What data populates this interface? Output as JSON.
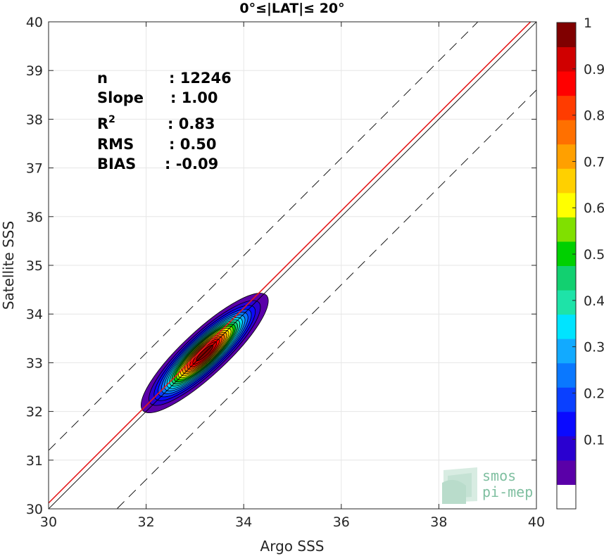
{
  "chart_data": {
    "type": "heatmap",
    "subtype": "density-contour-scatter",
    "title": "0°≤|LAT|≤ 20°",
    "xlabel": "Argo SSS",
    "ylabel": "Satellite SSS",
    "xlim": [
      30,
      40
    ],
    "ylim": [
      30,
      40
    ],
    "xticks": [
      "30",
      "32",
      "34",
      "36",
      "38",
      "40"
    ],
    "yticks": [
      "30",
      "31",
      "32",
      "33",
      "34",
      "35",
      "36",
      "37",
      "38",
      "39",
      "40"
    ],
    "grid": true,
    "stats": [
      {
        "label": "n",
        "value": ": 12246"
      },
      {
        "label": "Slope",
        "value": ": 1.00"
      },
      {
        "label": "R",
        "sup": "2",
        "value": ": 0.83"
      },
      {
        "label": "RMS",
        "value": ": 0.50"
      },
      {
        "label": "BIAS",
        "value": ": -0.09"
      }
    ],
    "lines": [
      {
        "role": "one-to-one",
        "color": "#000000",
        "style": "solid",
        "slope": 1,
        "intercept": 0
      },
      {
        "role": "regression",
        "color": "#e41a1c",
        "style": "solid",
        "slope": 1.0,
        "intercept": 0.12
      },
      {
        "role": "upper-bound",
        "color": "#000000",
        "style": "dashed",
        "slope": 1,
        "intercept": 1.2
      },
      {
        "role": "lower-bound",
        "color": "#000000",
        "style": "dashed",
        "slope": 1,
        "intercept": -1.4
      }
    ],
    "density": {
      "center": [
        33.2,
        33.2
      ],
      "levels": [
        0.05,
        0.1,
        0.15,
        0.2,
        0.25,
        0.3,
        0.35,
        0.4,
        0.45,
        0.5,
        0.55,
        0.6,
        0.65,
        0.7,
        0.75,
        0.8,
        0.85,
        0.9,
        0.95
      ]
    },
    "colorbar": {
      "ticks": [
        "0.1",
        "0.2",
        "0.3",
        "0.4",
        "0.5",
        "0.6",
        "0.7",
        "0.8",
        "0.9",
        "1"
      ],
      "colors": [
        "#ffffff",
        "#5a00a8",
        "#2a00d0",
        "#0a0aff",
        "#0a40ff",
        "#0a78ff",
        "#12aaff",
        "#00e4ff",
        "#1ee3a8",
        "#12d070",
        "#00d000",
        "#80e000",
        "#ffff00",
        "#ffd000",
        "#ffa000",
        "#ff7000",
        "#ff3c00",
        "#ff0000",
        "#d00000",
        "#800000"
      ]
    }
  },
  "watermark": {
    "line1": "smos",
    "line2": "pi-mep"
  }
}
